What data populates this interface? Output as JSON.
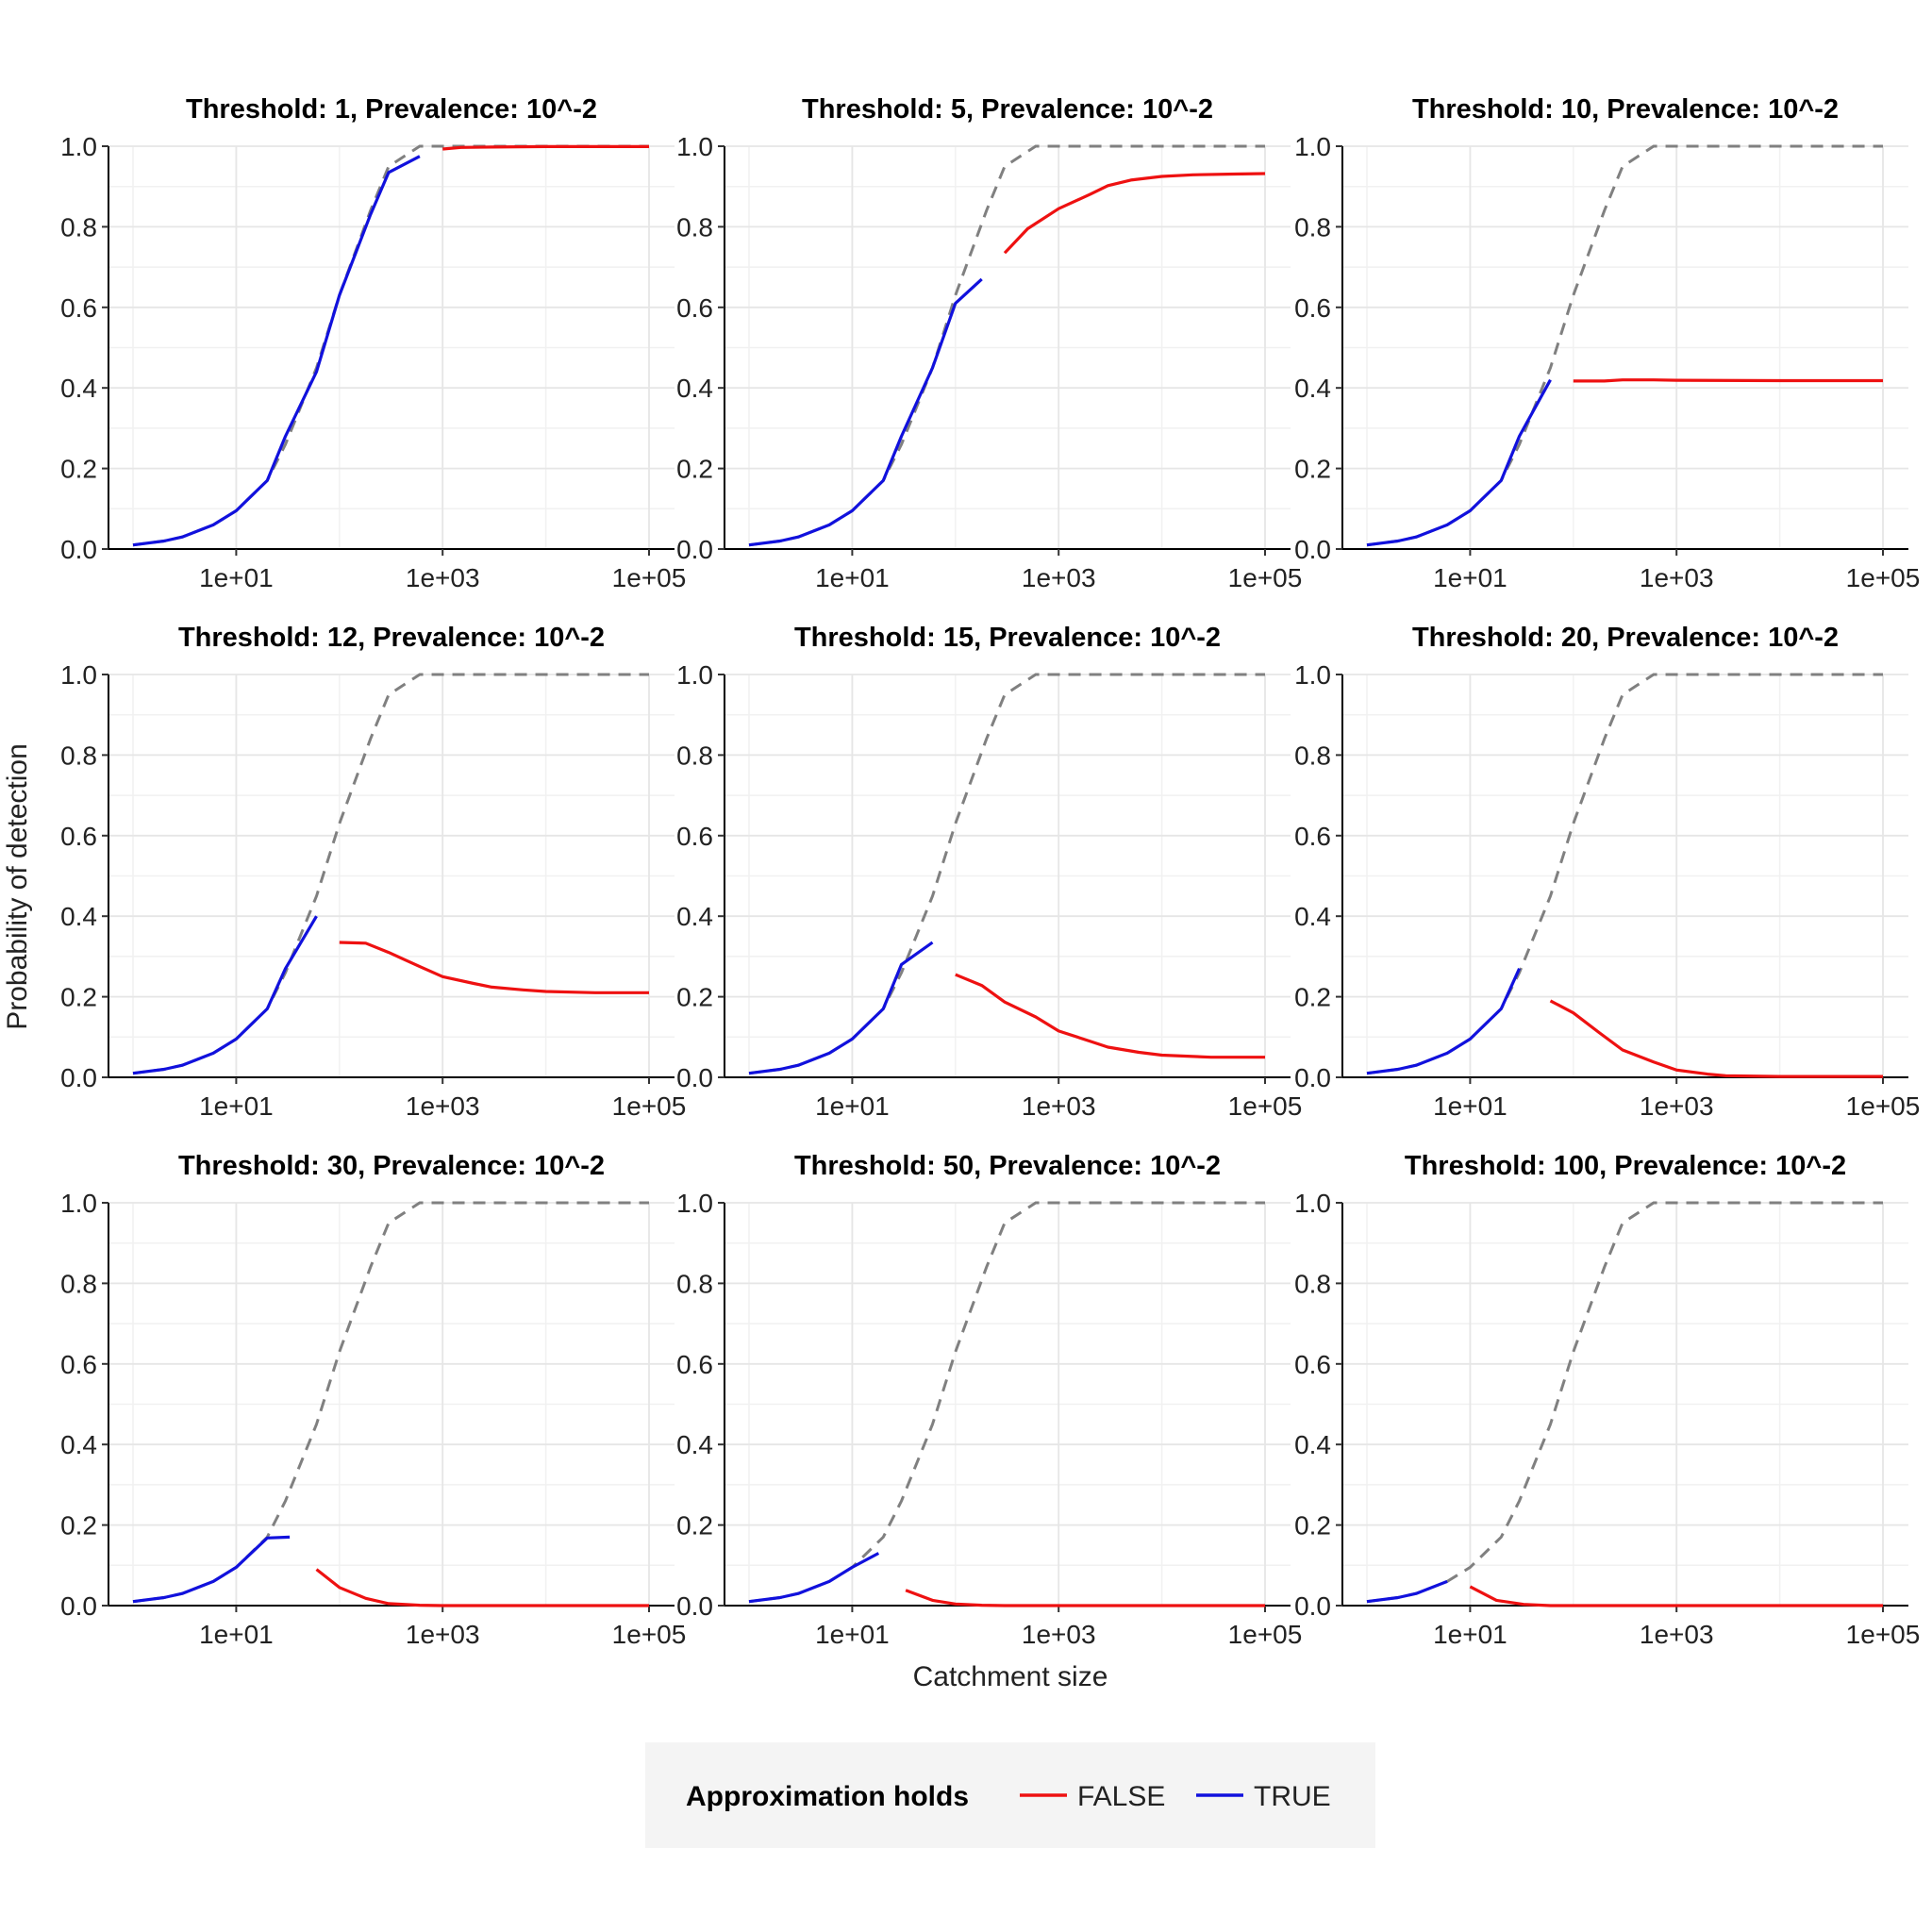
{
  "chart_data": {
    "type": "line",
    "layout": "facet-grid 3x3",
    "xlabel": "Catchment size",
    "ylabel": "Probability of detection",
    "x_scale": "log10",
    "xlim": [
      1,
      100000
    ],
    "x_ticks": [
      10,
      1000,
      100000
    ],
    "x_tick_labels": [
      "1e+01",
      "1e+03",
      "1e+05"
    ],
    "ylim": [
      0,
      1
    ],
    "y_ticks": [
      0,
      0.2,
      0.4,
      0.6,
      0.8,
      1.0
    ],
    "y_tick_labels": [
      "0.0",
      "0.2",
      "0.4",
      "0.6",
      "0.8",
      "1.0"
    ],
    "grid": true,
    "legend": {
      "title": "Approximation holds",
      "position": "bottom",
      "entries": [
        {
          "label": "FALSE",
          "color": "#ee1111"
        },
        {
          "label": "TRUE",
          "color": "#1111dd"
        }
      ]
    },
    "colors": {
      "FALSE": "#ee1111",
      "TRUE": "#1111dd",
      "reference": "#808080"
    },
    "reference_curve": {
      "style": "dashed",
      "color": "#808080",
      "x": [
        1,
        2,
        3,
        6,
        10,
        20,
        30,
        60,
        100,
        200,
        300,
        600,
        1000,
        100000
      ],
      "y": [
        0.01,
        0.02,
        0.03,
        0.06,
        0.095,
        0.17,
        0.26,
        0.45,
        0.63,
        0.84,
        0.95,
        1.0,
        1.0,
        1.0
      ]
    },
    "panels": [
      {
        "title": "Threshold: 1, Prevalence: 10^-2",
        "series": [
          {
            "name": "TRUE",
            "x": [
              1,
              2,
              3,
              6,
              10,
              20,
              30,
              60,
              100,
              200,
              300,
              600
            ],
            "y": [
              0.01,
              0.02,
              0.03,
              0.06,
              0.095,
              0.17,
              0.28,
              0.44,
              0.63,
              0.83,
              0.935,
              0.975
            ]
          },
          {
            "name": "FALSE",
            "x": [
              1000,
              1500,
              3000,
              10000,
              100000
            ],
            "y": [
              0.993,
              0.997,
              0.998,
              0.999,
              0.999
            ]
          }
        ]
      },
      {
        "title": "Threshold: 5, Prevalence: 10^-2",
        "series": [
          {
            "name": "TRUE",
            "x": [
              1,
              2,
              3,
              6,
              10,
              20,
              30,
              60,
              100,
              180
            ],
            "y": [
              0.01,
              0.02,
              0.03,
              0.06,
              0.095,
              0.17,
              0.28,
              0.45,
              0.61,
              0.67
            ]
          },
          {
            "name": "FALSE",
            "x": [
              300,
              500,
              1000,
              2000,
              3000,
              5000,
              10000,
              20000,
              50000,
              100000
            ],
            "y": [
              0.735,
              0.795,
              0.845,
              0.88,
              0.902,
              0.916,
              0.925,
              0.929,
              0.931,
              0.932
            ]
          }
        ]
      },
      {
        "title": "Threshold: 10, Prevalence: 10^-2",
        "series": [
          {
            "name": "TRUE",
            "x": [
              1,
              2,
              3,
              6,
              10,
              20,
              30,
              60
            ],
            "y": [
              0.01,
              0.02,
              0.03,
              0.06,
              0.095,
              0.17,
              0.28,
              0.42
            ]
          },
          {
            "name": "FALSE",
            "x": [
              100,
              200,
              300,
              600,
              1000,
              10000,
              100000
            ],
            "y": [
              0.417,
              0.417,
              0.42,
              0.42,
              0.419,
              0.418,
              0.418
            ]
          }
        ]
      },
      {
        "title": "Threshold: 12, Prevalence: 10^-2",
        "series": [
          {
            "name": "TRUE",
            "x": [
              1,
              2,
              3,
              6,
              10,
              20,
              30,
              60
            ],
            "y": [
              0.01,
              0.02,
              0.03,
              0.06,
              0.095,
              0.17,
              0.27,
              0.4
            ]
          },
          {
            "name": "FALSE",
            "x": [
              100,
              180,
              300,
              600,
              1000,
              2000,
              3000,
              6000,
              10000,
              30000,
              100000
            ],
            "y": [
              0.335,
              0.333,
              0.31,
              0.275,
              0.25,
              0.233,
              0.224,
              0.217,
              0.213,
              0.21,
              0.21
            ]
          }
        ]
      },
      {
        "title": "Threshold: 15, Prevalence: 10^-2",
        "series": [
          {
            "name": "TRUE",
            "x": [
              1,
              2,
              3,
              6,
              10,
              20,
              30,
              60
            ],
            "y": [
              0.01,
              0.02,
              0.03,
              0.06,
              0.095,
              0.17,
              0.28,
              0.335
            ]
          },
          {
            "name": "FALSE",
            "x": [
              100,
              180,
              300,
              600,
              1000,
              2000,
              3000,
              6000,
              10000,
              30000,
              100000
            ],
            "y": [
              0.255,
              0.228,
              0.187,
              0.15,
              0.115,
              0.09,
              0.075,
              0.062,
              0.055,
              0.05,
              0.05
            ]
          }
        ]
      },
      {
        "title": "Threshold: 20, Prevalence: 10^-2",
        "series": [
          {
            "name": "TRUE",
            "x": [
              1,
              2,
              3,
              6,
              10,
              20,
              30
            ],
            "y": [
              0.01,
              0.02,
              0.03,
              0.06,
              0.095,
              0.17,
              0.27
            ]
          },
          {
            "name": "FALSE",
            "x": [
              60,
              100,
              180,
              300,
              600,
              1000,
              2000,
              3000,
              10000,
              100000
            ],
            "y": [
              0.19,
              0.16,
              0.11,
              0.068,
              0.038,
              0.018,
              0.008,
              0.004,
              0.002,
              0.002
            ]
          }
        ]
      },
      {
        "title": "Threshold: 30, Prevalence: 10^-2",
        "series": [
          {
            "name": "TRUE",
            "x": [
              1,
              2,
              3,
              6,
              10,
              20,
              33
            ],
            "y": [
              0.01,
              0.02,
              0.03,
              0.06,
              0.095,
              0.168,
              0.17
            ]
          },
          {
            "name": "FALSE",
            "x": [
              60,
              100,
              180,
              300,
              600,
              1000,
              100000
            ],
            "y": [
              0.09,
              0.045,
              0.018,
              0.005,
              0.001,
              0.0,
              0.0
            ]
          }
        ]
      },
      {
        "title": "Threshold: 50, Prevalence: 10^-2",
        "series": [
          {
            "name": "TRUE",
            "x": [
              1,
              2,
              3,
              6,
              10,
              18
            ],
            "y": [
              0.01,
              0.02,
              0.03,
              0.06,
              0.095,
              0.13
            ]
          },
          {
            "name": "FALSE",
            "x": [
              33,
              60,
              100,
              180,
              300,
              100000
            ],
            "y": [
              0.038,
              0.013,
              0.004,
              0.001,
              0.0,
              0.0
            ]
          }
        ]
      },
      {
        "title": "Threshold: 100, Prevalence: 10^-2",
        "series": [
          {
            "name": "TRUE",
            "x": [
              1,
              2,
              3,
              6
            ],
            "y": [
              0.01,
              0.02,
              0.03,
              0.06
            ]
          },
          {
            "name": "FALSE",
            "x": [
              10,
              18,
              33,
              60,
              100,
              100000
            ],
            "y": [
              0.047,
              0.013,
              0.003,
              0.0,
              0.0,
              0.0
            ]
          }
        ]
      }
    ]
  }
}
